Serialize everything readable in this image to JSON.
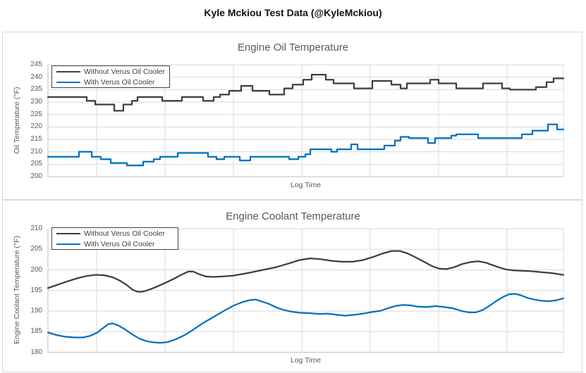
{
  "page_title": "Kyle Mckiou Test Data (@KyleMckiou)",
  "colors": {
    "series_without": "#3e3e3e",
    "series_with": "#0070c0",
    "gridline": "#d9d9d9",
    "axis_line": "#bfbfbf",
    "text_gray": "#595959",
    "panel_border": "#d9d9d9",
    "legend_border": "#434343",
    "title_black": "#111111"
  },
  "chart_data": [
    {
      "type": "line",
      "line_style": "step",
      "title": "Engine Oil Temperature",
      "xlabel": "Log Time",
      "ylabel": "Oil Temperature (°F)",
      "ylim": [
        200,
        245
      ],
      "ytick_step": 5,
      "grid": true,
      "legend_position": "top-left",
      "x_units": "unlabeled log time (px proxy 68-799)",
      "series": [
        {
          "name": "Without Verus Oil Cooler",
          "color": "#3e3e3e",
          "points": [
            [
              68,
              232
            ],
            [
              123,
              230.5
            ],
            [
              135,
              229
            ],
            [
              162,
              226.5
            ],
            [
              175,
              229
            ],
            [
              187,
              230.5
            ],
            [
              195,
              232
            ],
            [
              230,
              230.5
            ],
            [
              258,
              232
            ],
            [
              288,
              230.5
            ],
            [
              303,
              232
            ],
            [
              312,
              233
            ],
            [
              325,
              234.5
            ],
            [
              342,
              236.5
            ],
            [
              358,
              234.5
            ],
            [
              382,
              233
            ],
            [
              403,
              235.5
            ],
            [
              415,
              237
            ],
            [
              430,
              239
            ],
            [
              442,
              241
            ],
            [
              462,
              239
            ],
            [
              473,
              237.5
            ],
            [
              502,
              235.5
            ],
            [
              528,
              238.5
            ],
            [
              555,
              237
            ],
            [
              568,
              235.5
            ],
            [
              577,
              237.5
            ],
            [
              610,
              239
            ],
            [
              622,
              237.5
            ],
            [
              647,
              235.5
            ],
            [
              685,
              237.5
            ],
            [
              712,
              235.5
            ],
            [
              723,
              235
            ],
            [
              760,
              236
            ],
            [
              775,
              238
            ],
            [
              785,
              239.5
            ],
            [
              799,
              239.5
            ]
          ]
        },
        {
          "name": "With Verus Oil Cooler",
          "color": "#0070c0",
          "points": [
            [
              68,
              208
            ],
            [
              112,
              210
            ],
            [
              130,
              208
            ],
            [
              143,
              207
            ],
            [
              157,
              205.5
            ],
            [
              180,
              204.5
            ],
            [
              203,
              206
            ],
            [
              218,
              207
            ],
            [
              227,
              208
            ],
            [
              252,
              209.5
            ],
            [
              295,
              208
            ],
            [
              307,
              207
            ],
            [
              318,
              208
            ],
            [
              340,
              206.5
            ],
            [
              355,
              208
            ],
            [
              410,
              207
            ],
            [
              423,
              208
            ],
            [
              433,
              209
            ],
            [
              440,
              211
            ],
            [
              470,
              210
            ],
            [
              478,
              211
            ],
            [
              498,
              213
            ],
            [
              507,
              211
            ],
            [
              545,
              212.5
            ],
            [
              560,
              214.5
            ],
            [
              568,
              216
            ],
            [
              580,
              215.5
            ],
            [
              607,
              213.5
            ],
            [
              617,
              215.5
            ],
            [
              640,
              216.5
            ],
            [
              647,
              217
            ],
            [
              678,
              215.5
            ],
            [
              740,
              217
            ],
            [
              755,
              218.5
            ],
            [
              777,
              221
            ],
            [
              790,
              219
            ],
            [
              799,
              219
            ]
          ]
        }
      ]
    },
    {
      "type": "line",
      "line_style": "smooth",
      "title": "Engine Coolant Temperature",
      "xlabel": "Log Time",
      "ylabel": "Engine Coolant Temperature (°F)",
      "ylim": [
        180,
        210
      ],
      "ytick_step": 5,
      "grid": true,
      "legend_position": "top-left",
      "x_units": "unlabeled log time (px proxy 68-799)",
      "series": [
        {
          "name": "Without Verus Oil Cooler",
          "color": "#3e3e3e",
          "points": [
            [
              68,
              195.6
            ],
            [
              80,
              196.3
            ],
            [
              95,
              197.2
            ],
            [
              110,
              198.0
            ],
            [
              122,
              198.5
            ],
            [
              135,
              198.8
            ],
            [
              148,
              198.7
            ],
            [
              160,
              198.2
            ],
            [
              170,
              197.4
            ],
            [
              180,
              196.3
            ],
            [
              188,
              195.2
            ],
            [
              195,
              194.7
            ],
            [
              202,
              194.7
            ],
            [
              210,
              195.1
            ],
            [
              222,
              195.9
            ],
            [
              235,
              196.9
            ],
            [
              247,
              197.9
            ],
            [
              258,
              198.9
            ],
            [
              267,
              199.6
            ],
            [
              274,
              199.6
            ],
            [
              282,
              199.0
            ],
            [
              292,
              198.4
            ],
            [
              302,
              198.3
            ],
            [
              315,
              198.4
            ],
            [
              330,
              198.6
            ],
            [
              350,
              199.2
            ],
            [
              370,
              199.9
            ],
            [
              390,
              200.6
            ],
            [
              410,
              201.6
            ],
            [
              425,
              202.4
            ],
            [
              440,
              202.8
            ],
            [
              455,
              202.6
            ],
            [
              470,
              202.2
            ],
            [
              485,
              202.0
            ],
            [
              500,
              202.0
            ],
            [
              515,
              202.4
            ],
            [
              530,
              203.2
            ],
            [
              543,
              204.0
            ],
            [
              555,
              204.6
            ],
            [
              567,
              204.6
            ],
            [
              578,
              204.0
            ],
            [
              590,
              203.0
            ],
            [
              602,
              201.9
            ],
            [
              613,
              200.9
            ],
            [
              623,
              200.3
            ],
            [
              633,
              200.2
            ],
            [
              643,
              200.6
            ],
            [
              655,
              201.4
            ],
            [
              667,
              201.9
            ],
            [
              678,
              202.1
            ],
            [
              688,
              201.8
            ],
            [
              698,
              201.2
            ],
            [
              708,
              200.6
            ],
            [
              718,
              200.1
            ],
            [
              728,
              199.9
            ],
            [
              740,
              199.8
            ],
            [
              752,
              199.7
            ],
            [
              765,
              199.5
            ],
            [
              778,
              199.3
            ],
            [
              788,
              199.1
            ],
            [
              795,
              198.9
            ],
            [
              799,
              198.8
            ]
          ]
        },
        {
          "name": "With Verus Oil Cooler",
          "color": "#0070c0",
          "points": [
            [
              68,
              184.8
            ],
            [
              80,
              184.2
            ],
            [
              92,
              183.8
            ],
            [
              105,
              183.6
            ],
            [
              118,
              183.6
            ],
            [
              128,
              184.0
            ],
            [
              138,
              184.8
            ],
            [
              147,
              186.0
            ],
            [
              154,
              186.9
            ],
            [
              160,
              187.0
            ],
            [
              168,
              186.5
            ],
            [
              178,
              185.5
            ],
            [
              188,
              184.3
            ],
            [
              198,
              183.3
            ],
            [
              208,
              182.7
            ],
            [
              218,
              182.4
            ],
            [
              228,
              182.3
            ],
            [
              238,
              182.5
            ],
            [
              250,
              183.2
            ],
            [
              262,
              184.2
            ],
            [
              274,
              185.5
            ],
            [
              286,
              186.9
            ],
            [
              297,
              188.0
            ],
            [
              308,
              189.1
            ],
            [
              320,
              190.3
            ],
            [
              332,
              191.4
            ],
            [
              344,
              192.2
            ],
            [
              355,
              192.7
            ],
            [
              363,
              192.8
            ],
            [
              372,
              192.3
            ],
            [
              382,
              191.7
            ],
            [
              392,
              190.9
            ],
            [
              402,
              190.3
            ],
            [
              412,
              189.9
            ],
            [
              425,
              189.6
            ],
            [
              440,
              189.5
            ],
            [
              453,
              189.3
            ],
            [
              465,
              189.4
            ],
            [
              478,
              189.1
            ],
            [
              490,
              188.9
            ],
            [
              502,
              189.1
            ],
            [
              515,
              189.4
            ],
            [
              528,
              189.8
            ],
            [
              540,
              190.1
            ],
            [
              552,
              190.8
            ],
            [
              562,
              191.3
            ],
            [
              572,
              191.5
            ],
            [
              582,
              191.4
            ],
            [
              592,
              191.1
            ],
            [
              605,
              191.0
            ],
            [
              618,
              191.2
            ],
            [
              630,
              191.0
            ],
            [
              642,
              190.7
            ],
            [
              655,
              190.0
            ],
            [
              665,
              189.7
            ],
            [
              675,
              189.7
            ],
            [
              685,
              190.3
            ],
            [
              695,
              191.4
            ],
            [
              705,
              192.6
            ],
            [
              714,
              193.5
            ],
            [
              722,
              194.1
            ],
            [
              730,
              194.2
            ],
            [
              738,
              193.9
            ],
            [
              748,
              193.2
            ],
            [
              758,
              192.8
            ],
            [
              768,
              192.5
            ],
            [
              778,
              192.4
            ],
            [
              788,
              192.6
            ],
            [
              795,
              192.9
            ],
            [
              799,
              193.1
            ]
          ]
        }
      ]
    }
  ]
}
